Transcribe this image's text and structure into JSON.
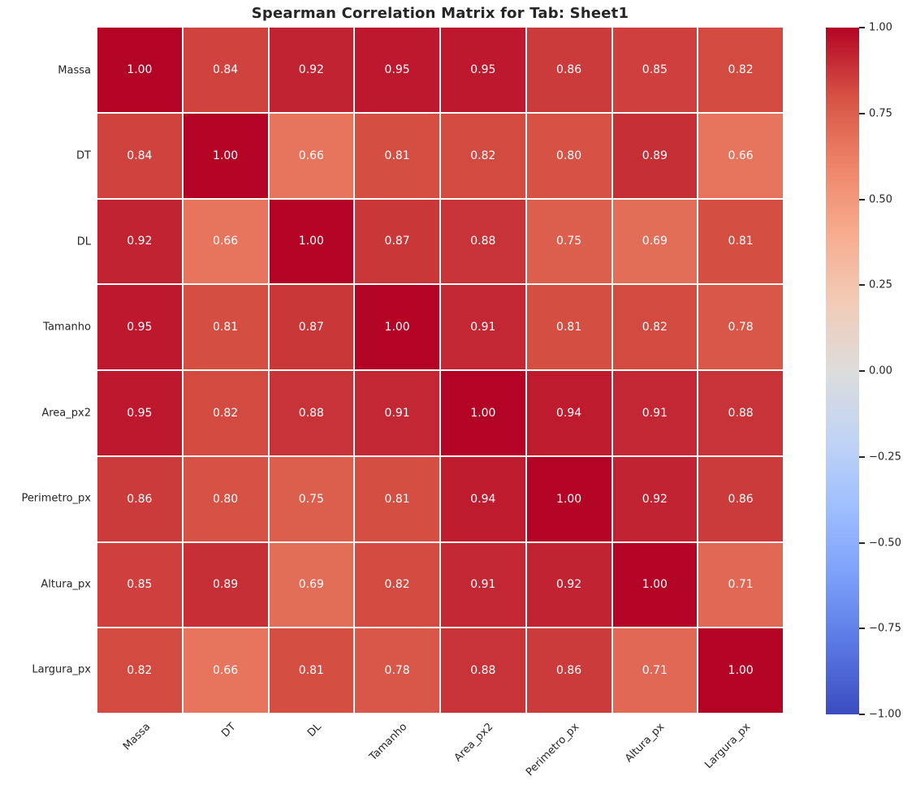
{
  "chart_data": {
    "type": "heatmap",
    "title": "Spearman Correlation Matrix for Tab: Sheet1",
    "labels": [
      "Massa",
      "DT",
      "DL",
      "Tamanho",
      "Area_px2",
      "Perimetro_px",
      "Altura_px",
      "Largura_px"
    ],
    "matrix": [
      [
        1.0,
        0.84,
        0.92,
        0.95,
        0.95,
        0.86,
        0.85,
        0.82
      ],
      [
        0.84,
        1.0,
        0.66,
        0.81,
        0.82,
        0.8,
        0.89,
        0.66
      ],
      [
        0.92,
        0.66,
        1.0,
        0.87,
        0.88,
        0.75,
        0.69,
        0.81
      ],
      [
        0.95,
        0.81,
        0.87,
        1.0,
        0.91,
        0.81,
        0.82,
        0.78
      ],
      [
        0.95,
        0.82,
        0.88,
        0.91,
        1.0,
        0.94,
        0.91,
        0.88
      ],
      [
        0.86,
        0.8,
        0.75,
        0.81,
        0.94,
        1.0,
        0.92,
        0.86
      ],
      [
        0.85,
        0.89,
        0.69,
        0.82,
        0.91,
        0.92,
        1.0,
        0.71
      ],
      [
        0.82,
        0.66,
        0.81,
        0.78,
        0.88,
        0.86,
        0.71,
        1.0
      ]
    ],
    "vmin": -1,
    "vmax": 1,
    "value_decimals": 2,
    "colorbar_tick_labels": [
      "1.00",
      "0.75",
      "0.50",
      "0.25",
      "0.00",
      "−0.25",
      "−0.50",
      "−0.75",
      "−1.00"
    ],
    "colormap": {
      "name": "coolwarm",
      "stops": [
        "#3b4cc0",
        "#5977e3",
        "#7b9ff9",
        "#9ebeff",
        "#c0d4f5",
        "#dddcdc",
        "#f2cbb7",
        "#f7ac8e",
        "#ee8468",
        "#d65244",
        "#b40426"
      ]
    },
    "cell_text_color": "#ffffff",
    "axis_text_color": "#262626",
    "grid_line_color": "#ffffff",
    "legend_position": "right",
    "x_tick_rotation_deg": 45
  }
}
